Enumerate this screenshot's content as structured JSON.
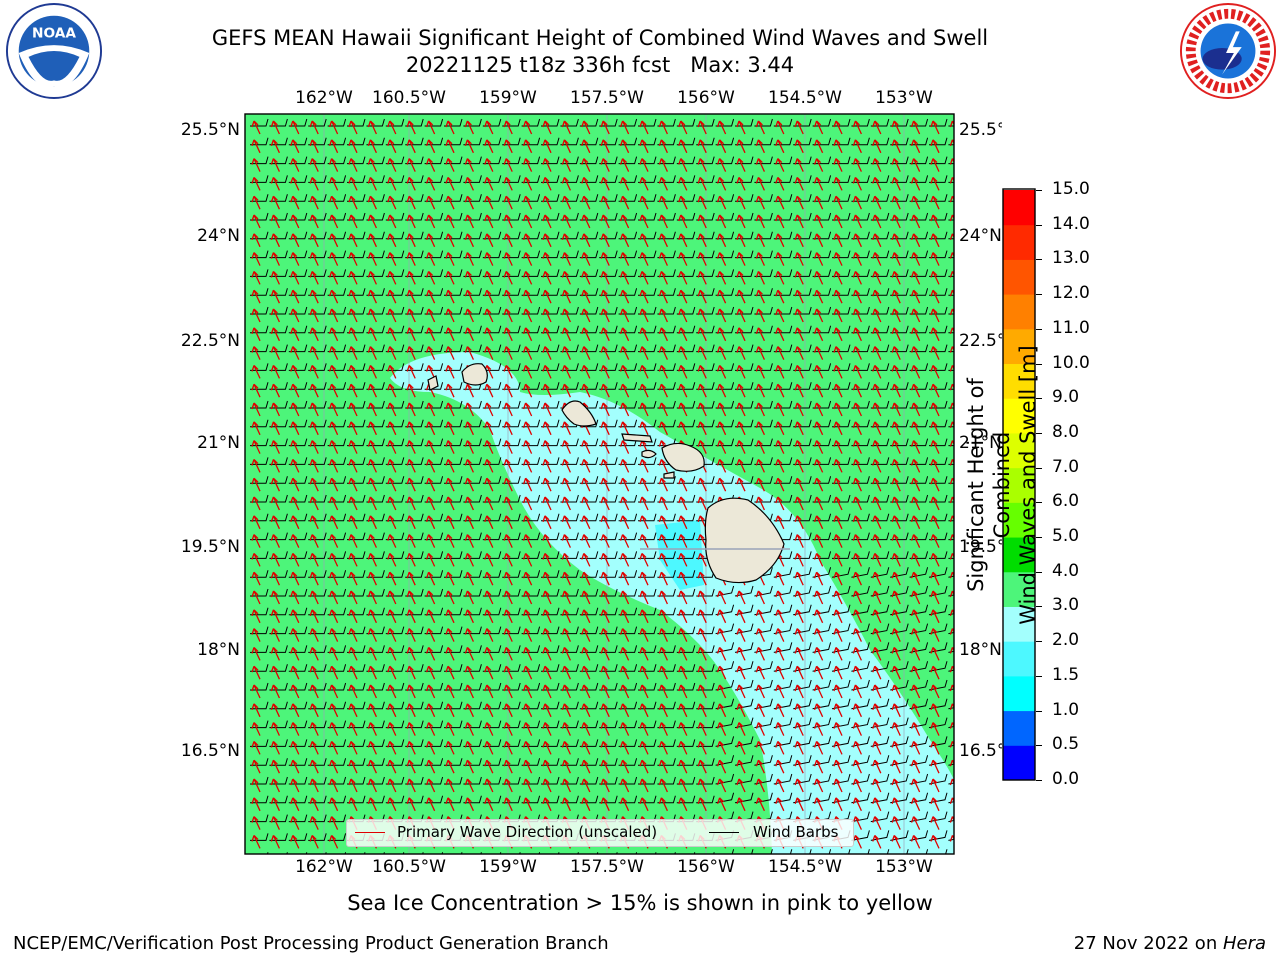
{
  "title": {
    "line1": "GEFS MEAN Hawaii Significant Height of Combined Wind Waves and Swell",
    "line2": "20221125 t18z 336h fcst   Max: 3.44"
  },
  "map": {
    "lon_ticks": [
      "162°W",
      "160.5°W",
      "159°W",
      "157.5°W",
      "156°W",
      "154.5°W",
      "153°W"
    ],
    "lat_ticks": [
      "25.5°N",
      "24°N",
      "22.5°N",
      "21°N",
      "19.5°N",
      "18°N",
      "16.5°N"
    ],
    "ocean_color": "#4df57a",
    "swell_color": "#a3fffd",
    "land_color": "#ece8d8",
    "wave_arrow_color": "#e00000",
    "barb_color": "#000000"
  },
  "legend": {
    "wave_label": "Primary Wave Direction (unscaled)",
    "barb_label": "Wind Barbs"
  },
  "colorbar": {
    "label_line1": "Significant Height of Combined",
    "label_line2": "Wind Waves and Swell [m]",
    "ticks": [
      "0.0",
      "0.5",
      "1.0",
      "1.5",
      "2.0",
      "3.0",
      "4.0",
      "5.0",
      "6.0",
      "7.0",
      "8.0",
      "9.0",
      "10.0",
      "11.0",
      "12.0",
      "13.0",
      "14.0",
      "15.0"
    ],
    "colors": [
      "#0000ff",
      "#0066ff",
      "#00ffff",
      "#4df8ff",
      "#a3fffd",
      "#4df57a",
      "#00dd00",
      "#66ff00",
      "#aaff00",
      "#ddff00",
      "#ffff00",
      "#ffdd00",
      "#ffaa00",
      "#ff8000",
      "#ff5500",
      "#ff2a00",
      "#ff0000"
    ]
  },
  "footer": {
    "note": "Sea Ice Concentration > 15% is shown in pink to yellow",
    "org": "NCEP/EMC/Verification Post Processing Product Generation Branch",
    "date": "27 Nov 2022 on ",
    "machine": "Hera"
  }
}
